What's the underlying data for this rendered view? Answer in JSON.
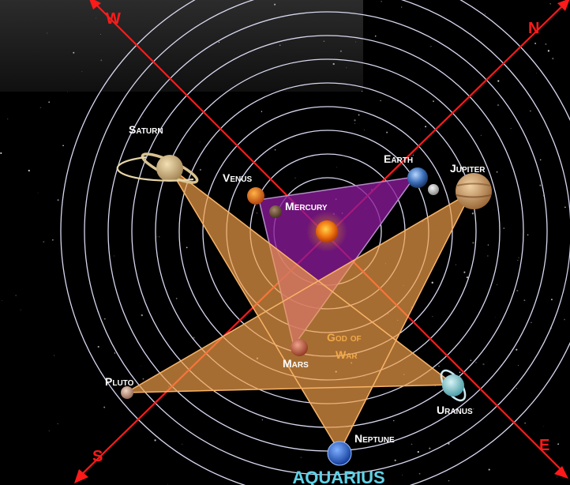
{
  "directions": {
    "west": "W",
    "north": "N",
    "south": "S",
    "east": "E"
  },
  "planets": {
    "saturn": "Saturn",
    "venus": "Venus",
    "mercury": "Mercury",
    "earth": "Earth",
    "jupiter": "Jupiter",
    "mars": "Mars",
    "pluto": "Pluto",
    "uranus": "Uranus",
    "neptune": "Neptune"
  },
  "annotation": {
    "line1": "God of",
    "line2": "War"
  },
  "sign": "AQUARIUS",
  "colors": {
    "background": "#000000",
    "orbit": "#d8d8f0",
    "axis": "#ff1a1a",
    "pentagram": "#f5a14a",
    "triangle": "#8a1a9a",
    "sign_text": "#5fd3e8",
    "label_text": "#ffffff",
    "annotation_text": "#f0a94a"
  }
}
